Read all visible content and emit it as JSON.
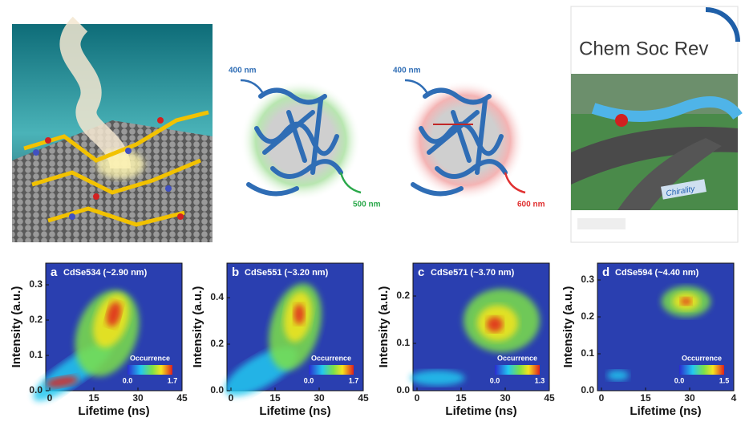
{
  "illustrations": {
    "protein_green": {
      "excitation": "400 nm",
      "emission": "500 nm"
    },
    "protein_red": {
      "excitation": "400 nm",
      "emission": "600 nm"
    },
    "cover": {
      "journal": "Chem Soc Rev",
      "sign": "Chirality"
    }
  },
  "panels": [
    {
      "letter": "a",
      "title": "CdSe534 (~2.90 nm)",
      "y_label": "Intensity (a.u.)",
      "x_label": "Lifetime (ns)",
      "y_ticks": [
        "0.0",
        "0.1",
        "0.2",
        "0.3"
      ],
      "x_ticks": [
        "0",
        "15",
        "30",
        "45"
      ],
      "colorbar": {
        "title": "Occurrence",
        "min": "0.0",
        "max": "1.7"
      }
    },
    {
      "letter": "b",
      "title": "CdSe551 (~3.20 nm)",
      "y_label": "Intensity (a.u.)",
      "x_label": "Lifetime (ns)",
      "y_ticks": [
        "0.0",
        "0.2",
        "0.4"
      ],
      "x_ticks": [
        "0",
        "15",
        "30",
        "45"
      ],
      "colorbar": {
        "title": "Occurrence",
        "min": "0.0",
        "max": "1.7"
      }
    },
    {
      "letter": "c",
      "title": "CdSe571 (~3.70 nm)",
      "y_label": "Intensity (a.u.)",
      "x_label": "Lifetime (ns)",
      "y_ticks": [
        "0.0",
        "0.1",
        "0.2"
      ],
      "x_ticks": [
        "0",
        "15",
        "30",
        "45"
      ],
      "colorbar": {
        "title": "Occurrence",
        "min": "0.0",
        "max": "1.3"
      }
    },
    {
      "letter": "d",
      "title": "CdSe594 (~4.40 nm)",
      "y_label": "Intensity (a.u.)",
      "x_label": "Lifetime (ns)",
      "y_ticks": [
        "0.0",
        "0.1",
        "0.2",
        "0.3"
      ],
      "x_ticks": [
        "0",
        "15",
        "30",
        "4"
      ],
      "colorbar": {
        "title": "Occurrence",
        "min": "0.0",
        "max": "1.5"
      }
    }
  ]
}
